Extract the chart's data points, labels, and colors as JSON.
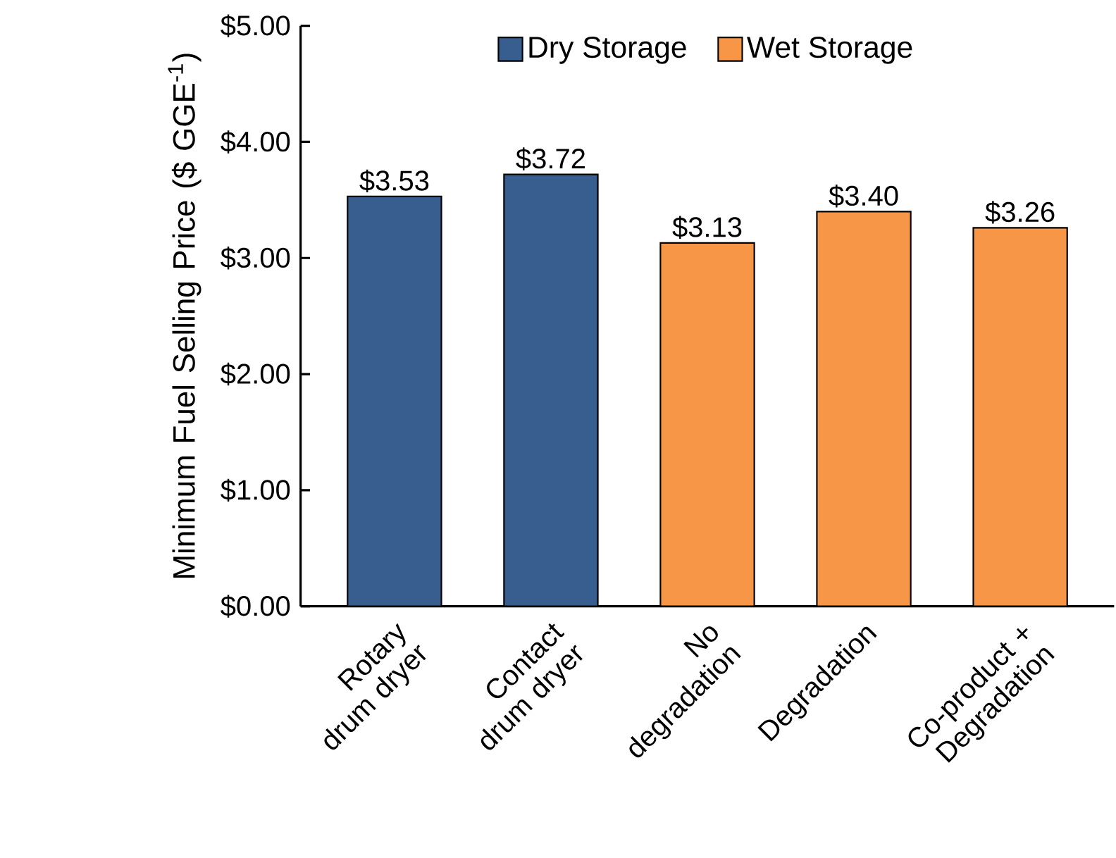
{
  "chart_data": {
    "type": "bar",
    "categories": [
      "Rotary drum dryer",
      "Contact drum dryer",
      "No degradation",
      "Degradation",
      "Co-product + Degradation"
    ],
    "ylabel": "Minimum Fuel Selling Price ($ GGE$^{-1}$)",
    "ylim": [
      0,
      5
    ],
    "yticks": [
      {
        "value": 0,
        "label": "$0.00"
      },
      {
        "value": 1,
        "label": "$1.00"
      },
      {
        "value": 2,
        "label": "$2.00"
      },
      {
        "value": 3,
        "label": "$3.00"
      },
      {
        "value": 4,
        "label": "$4.00"
      },
      {
        "value": 5,
        "label": "$5.00"
      }
    ],
    "legend": "top",
    "series": [
      {
        "name": "Dry Storage",
        "color": "#375e8f",
        "values": [
          3.53,
          3.72,
          null,
          null,
          null
        ],
        "value_labels": [
          "$3.53",
          "$3.72",
          null,
          null,
          null
        ]
      },
      {
        "name": "Wet Storage",
        "color": "#f79646",
        "values": [
          null,
          null,
          3.13,
          3.4,
          3.26
        ],
        "value_labels": [
          null,
          null,
          "$3.13",
          "$3.40",
          "$3.26"
        ]
      }
    ]
  }
}
